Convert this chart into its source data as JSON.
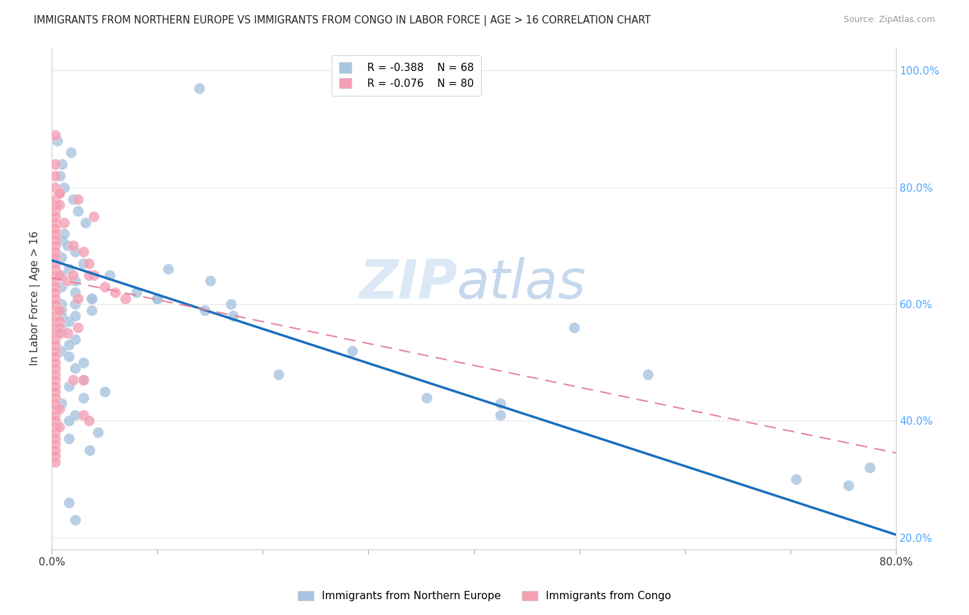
{
  "title": "IMMIGRANTS FROM NORTHERN EUROPE VS IMMIGRANTS FROM CONGO IN LABOR FORCE | AGE > 16 CORRELATION CHART",
  "source": "Source: ZipAtlas.com",
  "ylabel": "In Labor Force | Age > 16",
  "xlim": [
    0.0,
    0.8
  ],
  "ylim": [
    0.18,
    1.04
  ],
  "ytick_positions": [
    0.2,
    0.4,
    0.6,
    0.8,
    1.0
  ],
  "ytick_labels": [
    "20.0%",
    "40.0%",
    "60.0%",
    "80.0%",
    "100.0%"
  ],
  "xtick_positions": [
    0.0,
    0.1,
    0.2,
    0.3,
    0.4,
    0.5,
    0.6,
    0.7,
    0.8
  ],
  "xtick_labels": [
    "0.0%",
    "",
    "",
    "",
    "",
    "",
    "",
    "",
    "80.0%"
  ],
  "legend_blue_r": "R = -0.388",
  "legend_blue_n": "N = 68",
  "legend_pink_r": "R = -0.076",
  "legend_pink_n": "N = 80",
  "blue_color": "#a8c4e0",
  "pink_color": "#f4a0b4",
  "blue_line_color": "#1a6fbd",
  "pink_line_color": "#e8849a",
  "blue_x": [
    0.14,
    0.005,
    0.018,
    0.01,
    0.008,
    0.012,
    0.02,
    0.025,
    0.032,
    0.012,
    0.01,
    0.015,
    0.022,
    0.009,
    0.03,
    0.016,
    0.009,
    0.022,
    0.009,
    0.022,
    0.038,
    0.009,
    0.009,
    0.009,
    0.016,
    0.009,
    0.009,
    0.022,
    0.016,
    0.009,
    0.016,
    0.03,
    0.022,
    0.038,
    0.022,
    0.038,
    0.022,
    0.055,
    0.03,
    0.016,
    0.05,
    0.03,
    0.009,
    0.022,
    0.016,
    0.044,
    0.016,
    0.11,
    0.15,
    0.08,
    0.1,
    0.145,
    0.17,
    0.172,
    0.1,
    0.215,
    0.285,
    0.355,
    0.425,
    0.495,
    0.425,
    0.565,
    0.705,
    0.755,
    0.775,
    0.016,
    0.022,
    0.036
  ],
  "blue_y": [
    0.97,
    0.88,
    0.86,
    0.84,
    0.82,
    0.8,
    0.78,
    0.76,
    0.74,
    0.72,
    0.71,
    0.7,
    0.69,
    0.68,
    0.67,
    0.66,
    0.65,
    0.64,
    0.63,
    0.62,
    0.61,
    0.6,
    0.59,
    0.58,
    0.57,
    0.56,
    0.55,
    0.54,
    0.53,
    0.52,
    0.51,
    0.5,
    0.49,
    0.61,
    0.6,
    0.59,
    0.58,
    0.65,
    0.47,
    0.46,
    0.45,
    0.44,
    0.43,
    0.41,
    0.4,
    0.38,
    0.37,
    0.66,
    0.64,
    0.62,
    0.61,
    0.59,
    0.6,
    0.58,
    0.61,
    0.48,
    0.52,
    0.44,
    0.43,
    0.56,
    0.41,
    0.48,
    0.3,
    0.29,
    0.32,
    0.26,
    0.23,
    0.35
  ],
  "pink_x": [
    0.003,
    0.003,
    0.003,
    0.003,
    0.003,
    0.003,
    0.003,
    0.003,
    0.003,
    0.003,
    0.003,
    0.003,
    0.003,
    0.003,
    0.003,
    0.003,
    0.003,
    0.003,
    0.003,
    0.003,
    0.003,
    0.003,
    0.003,
    0.003,
    0.003,
    0.003,
    0.003,
    0.003,
    0.003,
    0.003,
    0.003,
    0.003,
    0.003,
    0.003,
    0.003,
    0.003,
    0.003,
    0.003,
    0.003,
    0.003,
    0.003,
    0.003,
    0.003,
    0.003,
    0.003,
    0.003,
    0.003,
    0.003,
    0.003,
    0.003,
    0.007,
    0.007,
    0.007,
    0.007,
    0.007,
    0.007,
    0.007,
    0.007,
    0.007,
    0.007,
    0.012,
    0.015,
    0.02,
    0.025,
    0.03,
    0.035,
    0.04,
    0.05,
    0.06,
    0.07,
    0.025,
    0.02,
    0.015,
    0.03,
    0.04,
    0.035,
    0.025,
    0.02,
    0.03,
    0.035
  ],
  "pink_y": [
    0.84,
    0.82,
    0.8,
    0.78,
    0.77,
    0.76,
    0.75,
    0.74,
    0.73,
    0.72,
    0.71,
    0.7,
    0.69,
    0.68,
    0.67,
    0.66,
    0.65,
    0.64,
    0.63,
    0.62,
    0.61,
    0.6,
    0.59,
    0.58,
    0.57,
    0.56,
    0.55,
    0.54,
    0.53,
    0.52,
    0.51,
    0.5,
    0.49,
    0.48,
    0.47,
    0.46,
    0.45,
    0.44,
    0.43,
    0.42,
    0.41,
    0.4,
    0.39,
    0.38,
    0.37,
    0.36,
    0.35,
    0.34,
    0.89,
    0.33,
    0.79,
    0.77,
    0.59,
    0.57,
    0.56,
    0.55,
    0.42,
    0.79,
    0.65,
    0.39,
    0.74,
    0.64,
    0.7,
    0.61,
    0.69,
    0.67,
    0.65,
    0.63,
    0.62,
    0.61,
    0.78,
    0.65,
    0.55,
    0.47,
    0.75,
    0.65,
    0.56,
    0.47,
    0.41,
    0.4
  ]
}
